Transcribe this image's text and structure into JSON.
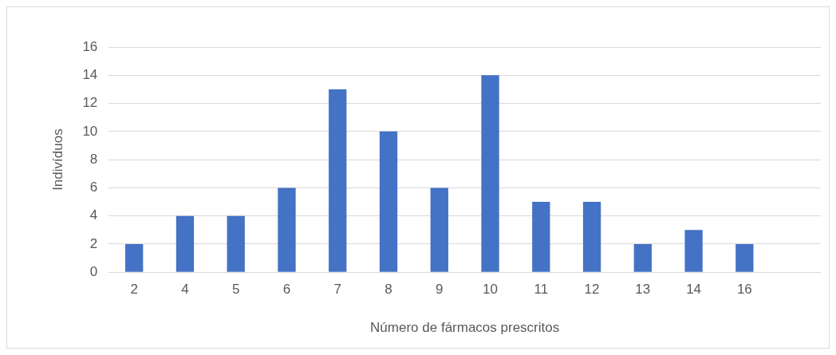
{
  "chart_data": {
    "type": "bar",
    "xlabel": "Número de fármacos prescritos",
    "ylabel": "Indivíduos",
    "categories": [
      "2",
      "4",
      "5",
      "6",
      "7",
      "8",
      "9",
      "10",
      "11",
      "12",
      "13",
      "14",
      "16",
      null
    ],
    "values": [
      2,
      4,
      4,
      6,
      13,
      10,
      6,
      14,
      5,
      5,
      2,
      3,
      2,
      null
    ],
    "color": "#4472c4",
    "ylim": [
      0,
      16
    ],
    "yticks": [
      0,
      2,
      4,
      6,
      8,
      10,
      12,
      14,
      16
    ],
    "grid": "y",
    "legend": false
  }
}
